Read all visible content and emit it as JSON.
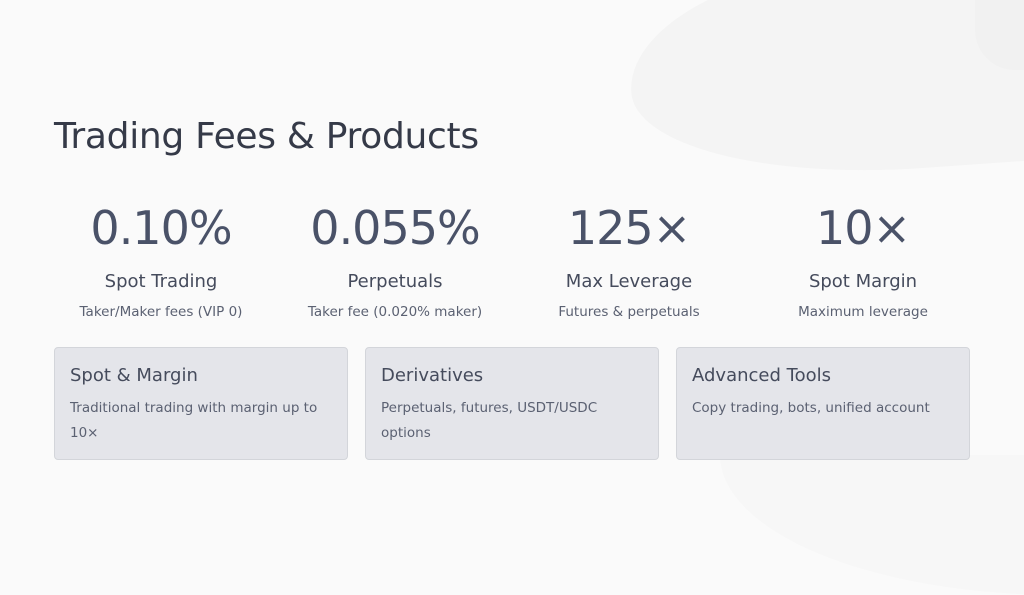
{
  "page": {
    "title": "Trading Fees & Products"
  },
  "stats": [
    {
      "value": "0.10%",
      "label": "Spot Trading",
      "sub": "Taker/Maker fees (VIP 0)"
    },
    {
      "value": "0.055%",
      "label": "Perpetuals",
      "sub": "Taker fee (0.020% maker)"
    },
    {
      "value": "125×",
      "label": "Max Leverage",
      "sub": "Futures & perpetuals"
    },
    {
      "value": "10×",
      "label": "Spot Margin",
      "sub": "Maximum leverage"
    }
  ],
  "cards": [
    {
      "title": "Spot & Margin",
      "desc": "Traditional trading with margin up to 10×"
    },
    {
      "title": "Derivatives",
      "desc": "Perpetuals, futures, USDT/USDC options"
    },
    {
      "title": "Advanced Tools",
      "desc": "Copy trading, bots, unified account"
    }
  ],
  "colors": {
    "background": "#fafafa",
    "title": "#353a48",
    "stat_value": "#4a5268",
    "card_background": "#e4e5ea",
    "card_border": "#d3d5da"
  }
}
